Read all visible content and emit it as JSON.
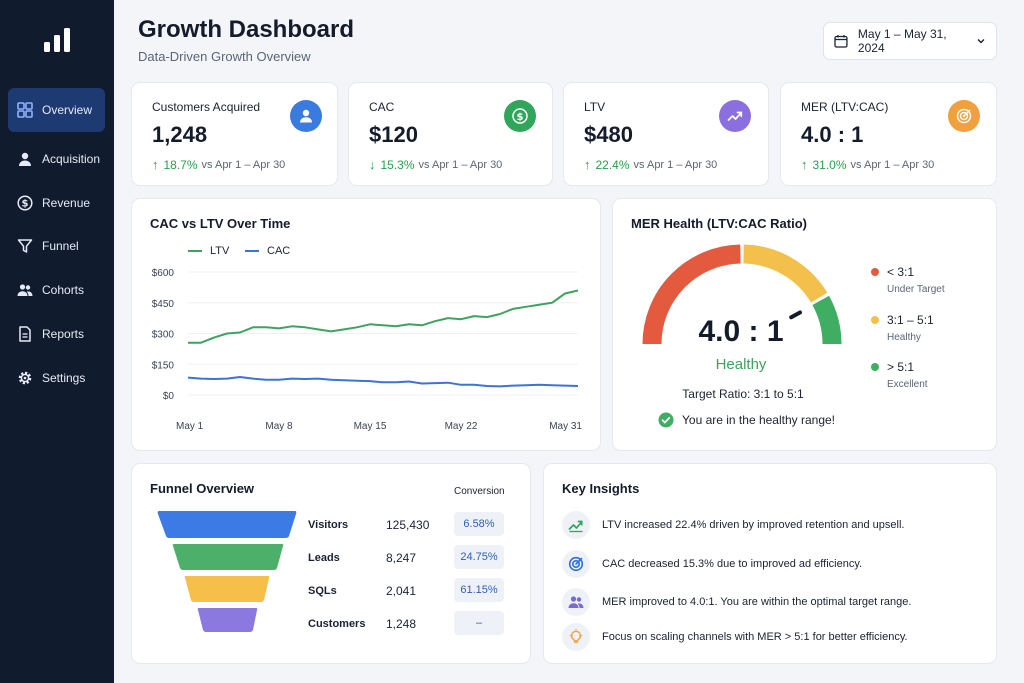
{
  "sidebar": {
    "items": [
      {
        "label": "Overview",
        "icon": "grid-icon"
      },
      {
        "label": "Acquisition",
        "icon": "user-icon"
      },
      {
        "label": "Revenue",
        "icon": "dollar-icon"
      },
      {
        "label": "Funnel",
        "icon": "funnel-icon"
      },
      {
        "label": "Cohorts",
        "icon": "users-icon"
      },
      {
        "label": "Reports",
        "icon": "document-icon"
      },
      {
        "label": "Settings",
        "icon": "gear-icon"
      }
    ]
  },
  "header": {
    "title": "Growth Dashboard",
    "subtitle": "Data-Driven Growth Overview",
    "date_range": "May 1 – May 31, 2024"
  },
  "kpis": [
    {
      "label": "Customers Acquired",
      "value": "1,248",
      "delta": "18.7%",
      "direction": "up",
      "compare": "vs Apr 1 – Apr 30",
      "icon": "user-icon",
      "color": "#3b7be0"
    },
    {
      "label": "CAC",
      "value": "$120",
      "delta": "15.3%",
      "direction": "down",
      "compare": "vs Apr 1 – Apr 30",
      "icon": "dollar-icon",
      "color": "#2fa65a"
    },
    {
      "label": "LTV",
      "value": "$480",
      "delta": "22.4%",
      "direction": "up",
      "compare": "vs Apr 1 – Apr 30",
      "icon": "trend-icon",
      "color": "#8b6fe0"
    },
    {
      "label": "MER (LTV:CAC)",
      "value": "4.0 : 1",
      "delta": "31.0%",
      "direction": "up",
      "compare": "vs Apr 1 – Apr 30",
      "icon": "target-icon",
      "color": "#f0a03c"
    }
  ],
  "line_chart": {
    "title": "CAC vs LTV Over Time",
    "legend": [
      "LTV",
      "CAC"
    ],
    "y_ticks": [
      "$600",
      "$450",
      "$300",
      "$150",
      "$0"
    ],
    "x_ticks": [
      "May 1",
      "May 8",
      "May 15",
      "May 22",
      "May 31"
    ],
    "colors": {
      "LTV": "#3fa35f",
      "CAC": "#3b73d9"
    }
  },
  "chart_data": {
    "type": "line",
    "title": "CAC vs LTV Over Time",
    "x": [
      "May 1",
      "May 2",
      "May 3",
      "May 4",
      "May 5",
      "May 6",
      "May 7",
      "May 8",
      "May 9",
      "May 10",
      "May 11",
      "May 12",
      "May 13",
      "May 14",
      "May 15",
      "May 16",
      "May 17",
      "May 18",
      "May 19",
      "May 20",
      "May 21",
      "May 22",
      "May 23",
      "May 24",
      "May 25",
      "May 26",
      "May 27",
      "May 28",
      "May 29",
      "May 30",
      "May 31"
    ],
    "series": [
      {
        "name": "LTV",
        "values": [
          255,
          255,
          280,
          300,
          305,
          330,
          330,
          325,
          335,
          330,
          320,
          310,
          320,
          330,
          345,
          340,
          335,
          345,
          340,
          360,
          375,
          370,
          385,
          380,
          395,
          420,
          430,
          440,
          450,
          495,
          510
        ]
      },
      {
        "name": "CAC",
        "values": [
          85,
          80,
          78,
          80,
          88,
          80,
          74,
          74,
          80,
          78,
          80,
          74,
          72,
          70,
          68,
          62,
          62,
          66,
          56,
          58,
          60,
          50,
          50,
          44,
          42,
          46,
          48,
          50,
          48,
          46,
          44
        ]
      }
    ],
    "ylim": [
      0,
      600
    ],
    "y_ticks": [
      0,
      150,
      300,
      450,
      600
    ],
    "legend": "top-left",
    "grid": true
  },
  "gauge": {
    "title": "MER Health (LTV:CAC Ratio)",
    "value": 4.0,
    "value_text": "4.0 : 1",
    "status": "Healthy",
    "target_text": "Target Ratio: 3:1 to 5:1",
    "message": "You are in the healthy range!",
    "legend": [
      {
        "range": "< 3:1",
        "label": "Under Target",
        "color": "#e35a3f"
      },
      {
        "range": "3:1 – 5:1",
        "label": "Healthy",
        "color": "#f3c14b"
      },
      {
        "range": "> 5:1",
        "label": "Excellent",
        "color": "#3fae62"
      }
    ]
  },
  "funnel": {
    "title": "Funnel Overview",
    "conversion_header": "Conversion",
    "stages": [
      {
        "label": "Visitors",
        "value": "125,430",
        "conversion": "6.58%",
        "color": "#3c7be6"
      },
      {
        "label": "Leads",
        "value": "8,247",
        "conversion": "24.75%",
        "color": "#4caf6a"
      },
      {
        "label": "SQLs",
        "value": "2,041",
        "conversion": "61.15%",
        "color": "#f5bf49"
      },
      {
        "label": "Customers",
        "value": "1,248",
        "conversion": "–",
        "color": "#8b79e0"
      }
    ]
  },
  "insights": {
    "title": "Key Insights",
    "items": [
      {
        "text": "LTV increased 22.4% driven by improved retention and upsell.",
        "icon": "trend-up-icon",
        "color": "#2fa65a"
      },
      {
        "text": "CAC decreased 15.3% due to improved ad efficiency.",
        "icon": "target-icon",
        "color": "#2f6fd6"
      },
      {
        "text": "MER improved to 4.0:1. You are within the optimal target range.",
        "icon": "users-icon",
        "color": "#7a68d8"
      },
      {
        "text": "Focus on scaling channels with MER > 5:1 for better efficiency.",
        "icon": "lightbulb-icon",
        "color": "#f0a03c"
      }
    ]
  }
}
